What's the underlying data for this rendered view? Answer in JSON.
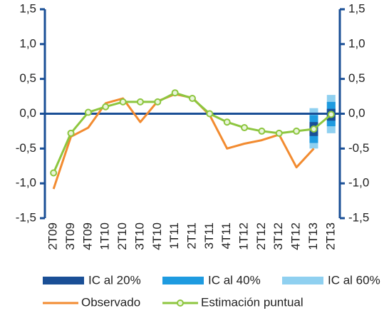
{
  "chart_data": {
    "type": "line",
    "categories": [
      "2T09",
      "3T09",
      "4T09",
      "1T10",
      "2T10",
      "3T10",
      "4T10",
      "1T11",
      "2T11",
      "3T11",
      "4T11",
      "1T12",
      "2T12",
      "3T12",
      "4T12",
      "1T13",
      "2T13"
    ],
    "ylim": [
      -1.5,
      1.5
    ],
    "yticks": [
      {
        "value": -1.5,
        "label": "-1,5"
      },
      {
        "value": -1.0,
        "label": "-1,0"
      },
      {
        "value": -0.5,
        "label": "-0,5"
      },
      {
        "value": 0,
        "label": "0,0"
      },
      {
        "value": 0.5,
        "label": "0,5"
      },
      {
        "value": 1.0,
        "label": "1,0"
      },
      {
        "value": 1.5,
        "label": "1,5"
      }
    ],
    "bands": [
      {
        "name": "IC al 60%",
        "color": "#8fd0f0",
        "low": [
          null,
          null,
          null,
          null,
          null,
          null,
          null,
          null,
          null,
          null,
          null,
          null,
          null,
          null,
          null,
          -0.5,
          -0.28
        ],
        "high": [
          null,
          null,
          null,
          null,
          null,
          null,
          null,
          null,
          null,
          null,
          null,
          null,
          null,
          null,
          null,
          0.08,
          0.27
        ]
      },
      {
        "name": "IC al 40%",
        "color": "#1e9be0",
        "low": [
          null,
          null,
          null,
          null,
          null,
          null,
          null,
          null,
          null,
          null,
          null,
          null,
          null,
          null,
          null,
          -0.42,
          -0.18
        ],
        "high": [
          null,
          null,
          null,
          null,
          null,
          null,
          null,
          null,
          null,
          null,
          null,
          null,
          null,
          null,
          null,
          -0.02,
          0.17
        ]
      },
      {
        "name": "IC al 20%",
        "color": "#1a4f96",
        "low": [
          null,
          null,
          null,
          null,
          null,
          null,
          null,
          null,
          null,
          null,
          null,
          null,
          null,
          null,
          null,
          -0.32,
          -0.1
        ],
        "high": [
          null,
          null,
          null,
          null,
          null,
          null,
          null,
          null,
          null,
          null,
          null,
          null,
          null,
          null,
          null,
          -0.12,
          0.07
        ]
      }
    ],
    "series": [
      {
        "name": "Observado",
        "color": "#f28b30",
        "values": [
          -1.08,
          -0.33,
          -0.2,
          0.15,
          0.22,
          -0.12,
          0.18,
          0.28,
          0.23,
          -0.02,
          -0.5,
          -0.43,
          -0.38,
          -0.3,
          -0.77,
          -0.5,
          null
        ]
      },
      {
        "name": "Estimación puntual",
        "color": "#8dc63f",
        "marker": true,
        "values": [
          -0.85,
          -0.28,
          0.02,
          0.1,
          0.17,
          0.17,
          0.17,
          0.3,
          0.22,
          0.0,
          -0.12,
          -0.2,
          -0.25,
          -0.28,
          -0.25,
          -0.22,
          -0.01
        ]
      }
    ]
  }
}
